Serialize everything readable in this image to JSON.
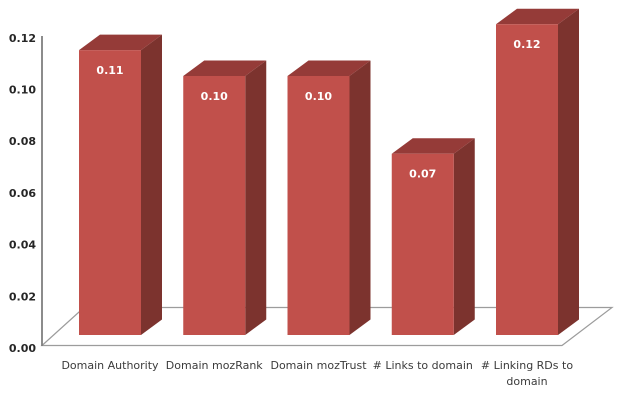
{
  "chart_data": {
    "type": "bar",
    "projection": "3d",
    "title": "",
    "xlabel": "",
    "ylabel": "",
    "categories": [
      "Domain Authority",
      "Domain mozRank",
      "Domain mozTrust",
      "# Links to domain",
      "# Linking RDs to\ndomain"
    ],
    "values": [
      0.11,
      0.1,
      0.1,
      0.07,
      0.12
    ],
    "data_labels": [
      "0.11",
      "0.10",
      "0.10",
      "0.07",
      "0.12"
    ],
    "ylim": [
      0,
      0.12
    ],
    "ytick_step": 0.02,
    "yticks": [
      "0.00",
      "0.02",
      "0.04",
      "0.06",
      "0.08",
      "0.10",
      "0.12"
    ],
    "grid": false,
    "legend": false,
    "colors": {
      "bar_front": "#C1504B",
      "bar_top": "#953B38",
      "bar_side": "#7C332E",
      "bar_label_text": "#FFFFFF",
      "axis_line": "#7F7F7F",
      "floor_line": "#9C9C9C",
      "tick_text": "#262626",
      "category_text": "#3B3B3B",
      "background": "#FFFFFF"
    }
  }
}
